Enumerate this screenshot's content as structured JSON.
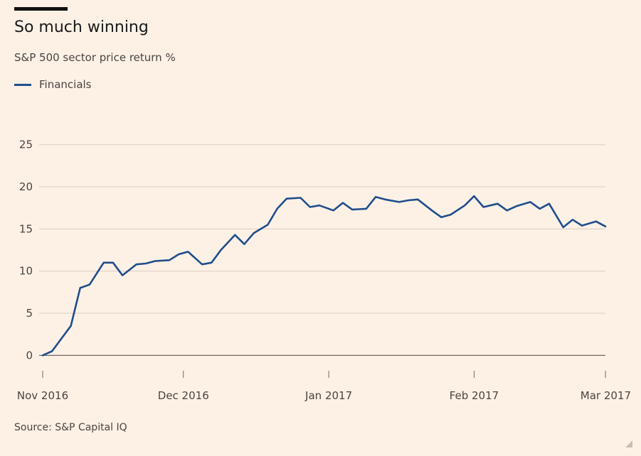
{
  "header": {
    "title": "So much winning",
    "subtitle": "S&P 500 sector price return %"
  },
  "footer": {
    "source": "Source: S&P Capital IQ"
  },
  "colors": {
    "background": "#fdf1e6",
    "grid": "#d9cec3",
    "zero_line": "#6e6862"
  },
  "chart_data": {
    "type": "line",
    "title": "So much winning",
    "subtitle": "S&P 500 sector price return %",
    "xlabel": "",
    "ylabel": "",
    "ylim": [
      -2.5,
      27
    ],
    "xlim": [
      "2016-11-01",
      "2017-03-01"
    ],
    "yticks": [
      0,
      5,
      10,
      15,
      20,
      25
    ],
    "xticks": [
      {
        "date": "2016-11-01",
        "label": "Nov 2016"
      },
      {
        "date": "2016-12-01",
        "label": "Dec 2016"
      },
      {
        "date": "2017-01-01",
        "label": "Jan 2017"
      },
      {
        "date": "2017-02-01",
        "label": "Feb 2017"
      },
      {
        "date": "2017-03-01",
        "label": "Mar 2017"
      }
    ],
    "grid": true,
    "legend_position": "top",
    "series": [
      {
        "name": "Financials",
        "color": "#1f4e8c",
        "points": [
          [
            "2016-11-01",
            0
          ],
          [
            "2016-11-03",
            0.5
          ],
          [
            "2016-11-07",
            3.5
          ],
          [
            "2016-11-09",
            8.0
          ],
          [
            "2016-11-11",
            8.4
          ],
          [
            "2016-11-14",
            11.0
          ],
          [
            "2016-11-16",
            11.0
          ],
          [
            "2016-11-18",
            9.5
          ],
          [
            "2016-11-21",
            10.8
          ],
          [
            "2016-11-23",
            10.9
          ],
          [
            "2016-11-25",
            11.2
          ],
          [
            "2016-11-28",
            11.3
          ],
          [
            "2016-11-30",
            12.0
          ],
          [
            "2016-12-02",
            12.3
          ],
          [
            "2016-12-05",
            10.8
          ],
          [
            "2016-12-07",
            11.0
          ],
          [
            "2016-12-09",
            12.5
          ],
          [
            "2016-12-12",
            14.3
          ],
          [
            "2016-12-14",
            13.2
          ],
          [
            "2016-12-16",
            14.5
          ],
          [
            "2016-12-19",
            15.5
          ],
          [
            "2016-12-21",
            17.4
          ],
          [
            "2016-12-23",
            18.6
          ],
          [
            "2016-12-26",
            18.7
          ],
          [
            "2016-12-28",
            17.6
          ],
          [
            "2016-12-30",
            17.8
          ],
          [
            "2017-01-02",
            17.2
          ],
          [
            "2017-01-04",
            18.1
          ],
          [
            "2017-01-06",
            17.3
          ],
          [
            "2017-01-09",
            17.4
          ],
          [
            "2017-01-11",
            18.8
          ],
          [
            "2017-01-13",
            18.5
          ],
          [
            "2017-01-16",
            18.2
          ],
          [
            "2017-01-18",
            18.4
          ],
          [
            "2017-01-20",
            18.5
          ],
          [
            "2017-01-23",
            17.2
          ],
          [
            "2017-01-25",
            16.4
          ],
          [
            "2017-01-27",
            16.7
          ],
          [
            "2017-01-30",
            17.8
          ],
          [
            "2017-02-01",
            18.9
          ],
          [
            "2017-02-03",
            17.6
          ],
          [
            "2017-02-06",
            18.0
          ],
          [
            "2017-02-08",
            17.2
          ],
          [
            "2017-02-10",
            17.7
          ],
          [
            "2017-02-13",
            18.2
          ],
          [
            "2017-02-15",
            17.4
          ],
          [
            "2017-02-17",
            18.0
          ],
          [
            "2017-02-20",
            15.2
          ],
          [
            "2017-02-22",
            16.1
          ],
          [
            "2017-02-24",
            15.4
          ],
          [
            "2017-02-27",
            15.9
          ],
          [
            "2017-03-01",
            15.3
          ]
        ]
      }
    ]
  }
}
